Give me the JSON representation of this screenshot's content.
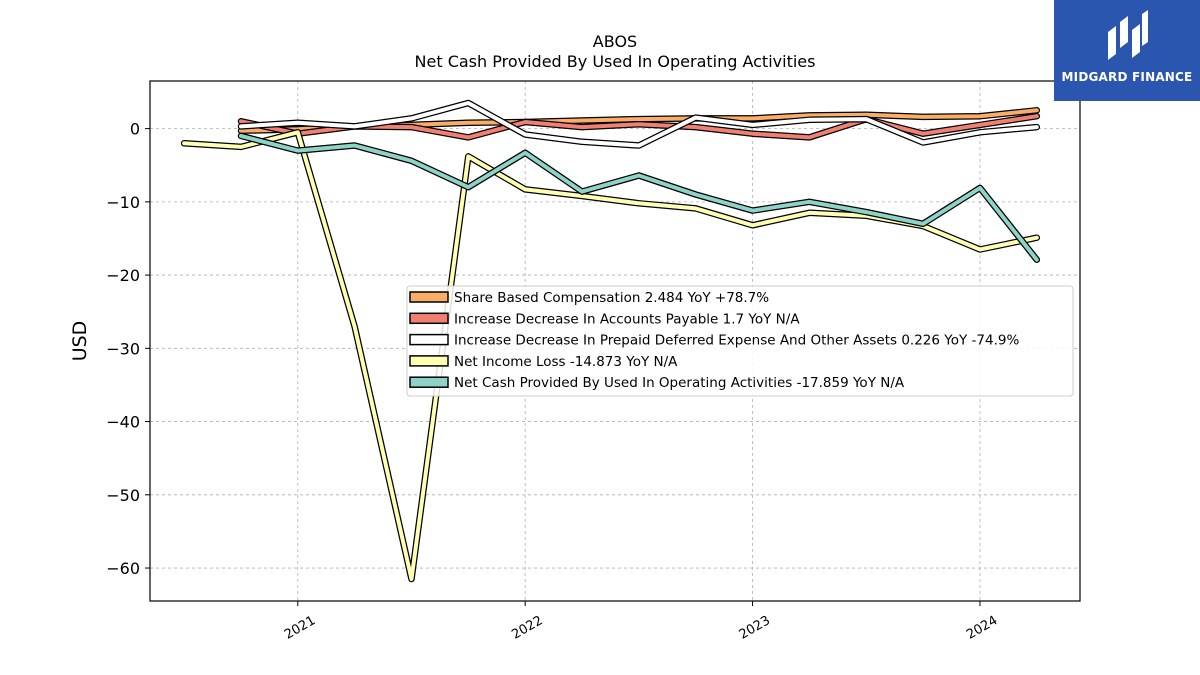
{
  "chart_data": {
    "type": "line",
    "title": "ABOS",
    "subtitle": "Net Cash Provided By Used In Operating Activities",
    "ylabel": "USD",
    "xlabel": "",
    "ylim": [
      -64.5,
      6.5
    ],
    "xlim": [
      2020.35,
      2024.44
    ],
    "yticks": [
      0,
      -10,
      -20,
      -30,
      -40,
      -50,
      -60
    ],
    "ytick_labels": [
      "0",
      "−10",
      "−20",
      "−30",
      "−40",
      "−50",
      "−60"
    ],
    "xticks": [
      2021,
      2022,
      2023,
      2024
    ],
    "xtick_labels": [
      "2021",
      "2022",
      "2023",
      "2024"
    ],
    "grid": true,
    "legend_position": "center-right",
    "series": [
      {
        "name": "Share Based Compensation",
        "legend_label": "Share Based Compensation  2.484 YoY +78.7%",
        "color": "#f9ad67",
        "x": [
          2020.75,
          2021.0,
          2021.25,
          2021.5,
          2021.75,
          2022.0,
          2022.25,
          2022.5,
          2022.75,
          2023.0,
          2023.25,
          2023.5,
          2023.75,
          2024.0,
          2024.25
        ],
        "y": [
          -0.3,
          -0.1,
          0.3,
          0.5,
          0.8,
          0.9,
          1.1,
          1.3,
          1.4,
          1.4,
          1.8,
          1.9,
          1.6,
          1.7,
          2.5
        ]
      },
      {
        "name": "Increase Decrease In Accounts Payable",
        "legend_label": "Increase Decrease In Accounts Payable  1.7 YoY N/A",
        "color": "#f28072",
        "x": [
          2020.75,
          2021.0,
          2021.25,
          2021.5,
          2021.75,
          2022.0,
          2022.25,
          2022.5,
          2022.75,
          2023.0,
          2023.25,
          2023.5,
          2023.75,
          2024.0,
          2024.25
        ],
        "y": [
          1.0,
          -0.7,
          0.3,
          0.2,
          -1.2,
          0.9,
          0.2,
          0.6,
          0.2,
          -0.7,
          -1.2,
          1.3,
          -0.7,
          0.5,
          1.7
        ]
      },
      {
        "name": "Increase Decrease In Prepaid Deferred Expense And Other Assets",
        "legend_label": "Increase Decrease In Prepaid Deferred Expense And Other Assets  0.226 YoY -74.9%",
        "color": "#ffffff",
        "x": [
          2020.75,
          2021.0,
          2021.25,
          2021.5,
          2021.75,
          2022.0,
          2022.25,
          2022.5,
          2022.75,
          2023.0,
          2023.25,
          2023.5,
          2023.75,
          2024.0,
          2024.25
        ],
        "y": [
          0.3,
          0.8,
          0.3,
          1.4,
          3.5,
          -0.8,
          -1.8,
          -2.3,
          1.5,
          0.5,
          1.2,
          1.3,
          -1.9,
          -0.5,
          0.2
        ]
      },
      {
        "name": "Net Income Loss",
        "legend_label": "Net Income Loss  -14.873 YoY N/A",
        "color": "#ffffb3",
        "x": [
          2020.5,
          2020.75,
          2021.0,
          2021.25,
          2021.5,
          2021.75,
          2022.0,
          2022.25,
          2022.5,
          2022.75,
          2023.0,
          2023.25,
          2023.5,
          2023.75,
          2024.0,
          2024.25
        ],
        "y": [
          -2.0,
          -2.5,
          -0.5,
          -27.0,
          -61.5,
          -3.8,
          -8.3,
          -9.2,
          -10.2,
          -10.9,
          -13.2,
          -11.5,
          -11.9,
          -13.3,
          -16.5,
          -14.9
        ]
      },
      {
        "name": "Net Cash Provided By Used In Operating Activities",
        "legend_label": "Net Cash Provided By Used In Operating Activities  -17.859 YoY N/A",
        "color": "#8dd3c7",
        "x": [
          2020.75,
          2021.0,
          2021.25,
          2021.5,
          2021.75,
          2022.0,
          2022.25,
          2022.5,
          2022.75,
          2023.0,
          2023.25,
          2023.5,
          2023.75,
          2024.0,
          2024.25
        ],
        "y": [
          -1.0,
          -3.0,
          -2.3,
          -4.4,
          -8.0,
          -3.3,
          -8.6,
          -6.4,
          -9.0,
          -11.2,
          -10.0,
          -11.4,
          -13.0,
          -8.1,
          -17.9
        ]
      }
    ]
  },
  "logo": {
    "text": "MIDGARD FINANCE",
    "background": "#2a56b0"
  }
}
